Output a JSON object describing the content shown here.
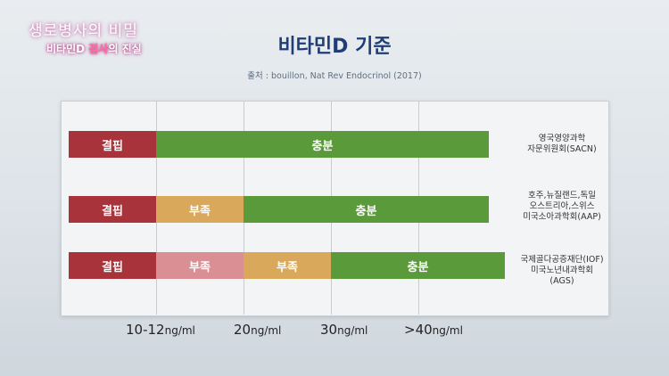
{
  "logo": {
    "line1": "생로병사의 비밀",
    "line2_pre": "비타민D ",
    "line2_hl": "검사",
    "line2_post": "의 진실"
  },
  "title": "비타민D 기준",
  "source": "출처 : bouillon, Nat Rev Endocrinol (2017)",
  "rows": [
    {
      "org_lines": [
        "영국영양과학",
        "자문위원회(SACN)"
      ],
      "segments": [
        {
          "label": "결핍",
          "color": "#a8333b"
        },
        {
          "label": "충분",
          "color": "#5b9a3a"
        }
      ]
    },
    {
      "org_lines": [
        "호주,뉴질랜드,독일",
        "오스트리아,스위스",
        "미국소아과학회(AAP)"
      ],
      "segments": [
        {
          "label": "결핍",
          "color": "#a8333b"
        },
        {
          "label": "부족",
          "color": "#d9a85a"
        },
        {
          "label": "충분",
          "color": "#5b9a3a"
        }
      ]
    },
    {
      "org_lines": [
        "국제골다공증재단(IOF)",
        "미국노년내과학회(AGS)"
      ],
      "segments": [
        {
          "label": "결핍",
          "color": "#a8333b"
        },
        {
          "label": "부족",
          "color": "#d98f93"
        },
        {
          "label": "부족",
          "color": "#d9a85a"
        },
        {
          "label": "충분",
          "color": "#5b9a3a"
        }
      ]
    }
  ],
  "ticks": [
    {
      "value": "10-12",
      "unit": "ng/ml"
    },
    {
      "value": "20",
      "unit": "ng/ml"
    },
    {
      "value": "30",
      "unit": "ng/ml"
    },
    {
      "value": ">40",
      "unit": "ng/ml"
    }
  ]
}
